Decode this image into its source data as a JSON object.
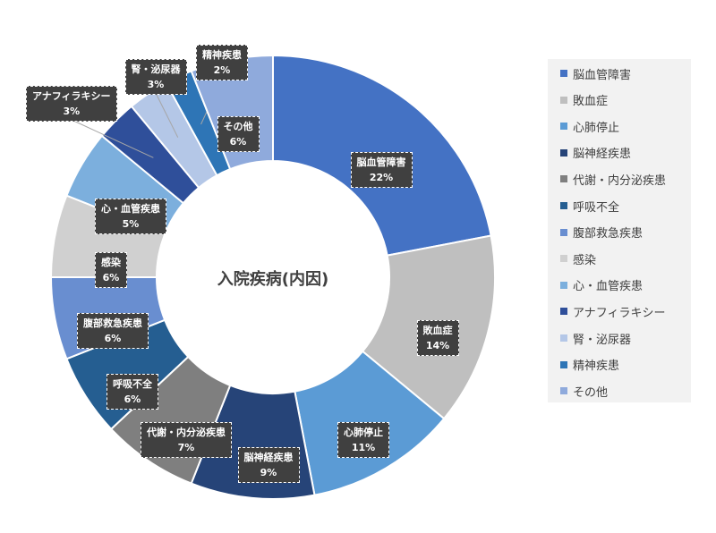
{
  "chart_data": {
    "type": "pie",
    "title": "入院疾病(内因)",
    "slices": [
      {
        "name": "脳血管障害",
        "value": 22,
        "label": "22%",
        "color": "#4472c4"
      },
      {
        "name": "敗血症",
        "value": 14,
        "label": "14%",
        "color": "#bfbfbf"
      },
      {
        "name": "心肺停止",
        "value": 11,
        "label": "11%",
        "color": "#5b9bd5"
      },
      {
        "name": "脳神経疾患",
        "value": 9,
        "label": "9%",
        "color": "#264478"
      },
      {
        "name": "代謝・内分泌疾患",
        "value": 7,
        "label": "7%",
        "color": "#7f7f7f"
      },
      {
        "name": "呼吸不全",
        "value": 6,
        "label": "6%",
        "color": "#255e91"
      },
      {
        "name": "腹部救急疾患",
        "value": 6,
        "label": "6%",
        "color": "#698ed0"
      },
      {
        "name": "感染",
        "value": 6,
        "label": "6%",
        "color": "#d0d0d0"
      },
      {
        "name": "心・血管疾患",
        "value": 5,
        "label": "5%",
        "color": "#7cafdd"
      },
      {
        "name": "アナフィラキシー",
        "value": 3,
        "label": "3%",
        "color": "#2f4f9a"
      },
      {
        "name": "腎・泌尿器",
        "value": 3,
        "label": "3%",
        "color": "#b4c7e7"
      },
      {
        "name": "精神疾患",
        "value": 2,
        "label": "2%",
        "color": "#2e75b6"
      },
      {
        "name": "その他",
        "value": 6,
        "label": "6%",
        "color": "#8faadc"
      }
    ],
    "legend_position": "right",
    "donut": true
  }
}
